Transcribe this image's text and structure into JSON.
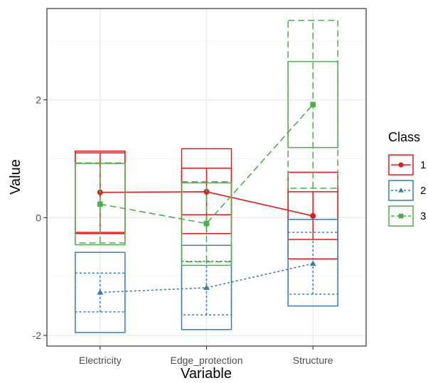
{
  "chart_data": {
    "type": "line",
    "xlabel": "Variable",
    "ylabel": "Value",
    "categories": [
      "Electricity",
      "Edge_protection",
      "Structure"
    ],
    "yticks": [
      -2,
      0,
      2
    ],
    "ylim": [
      -2.18,
      3.55
    ],
    "grid": true,
    "legend": {
      "title": "Class",
      "position": "right"
    },
    "series": [
      {
        "name": "1",
        "color": "#E41A1C",
        "linetype": "solid",
        "marker": "circle",
        "values": [
          0.43,
          0.44,
          0.03
        ],
        "box_outer": [
          [
            -0.27,
            1.13
          ],
          [
            -0.27,
            1.17
          ],
          [
            -0.7,
            0.77
          ]
        ],
        "box_inner": [
          [
            -0.25,
            1.1
          ],
          [
            0.05,
            0.84
          ],
          [
            -0.37,
            0.44
          ]
        ],
        "whisker": [
          [
            -0.25,
            1.1
          ],
          [
            -0.25,
            0.84
          ],
          [
            -0.37,
            0.44
          ]
        ]
      },
      {
        "name": "2",
        "color": "#377EB8",
        "linetype": "dotted",
        "marker": "triangle",
        "values": [
          -1.27,
          -1.19,
          -0.78
        ],
        "box_outer": [
          [
            -1.95,
            -0.59
          ],
          [
            -1.9,
            -0.47
          ],
          [
            -1.5,
            -0.03
          ]
        ],
        "box_inner": [
          [
            -1.6,
            -0.94
          ],
          [
            -1.65,
            -0.74
          ],
          [
            -1.3,
            -0.25
          ]
        ],
        "whisker": [
          [
            -1.6,
            -0.94
          ],
          [
            -1.65,
            -0.74
          ],
          [
            -1.3,
            -0.25
          ]
        ]
      },
      {
        "name": "3",
        "color": "#4DAF4A",
        "linetype": "dashed",
        "marker": "square",
        "values": [
          0.23,
          -0.1,
          1.92
        ],
        "box_outer": [
          [
            -0.46,
            0.92
          ],
          [
            -0.81,
            0.59
          ],
          [
            1.19,
            2.65
          ]
        ],
        "box_inner": [
          [
            -0.43,
            0.93
          ],
          [
            -0.75,
            0.61
          ],
          [
            0.5,
            3.35
          ]
        ],
        "whisker": [
          [
            -0.43,
            0.93
          ],
          [
            -0.75,
            0.61
          ],
          [
            0.5,
            3.35
          ]
        ]
      }
    ]
  }
}
